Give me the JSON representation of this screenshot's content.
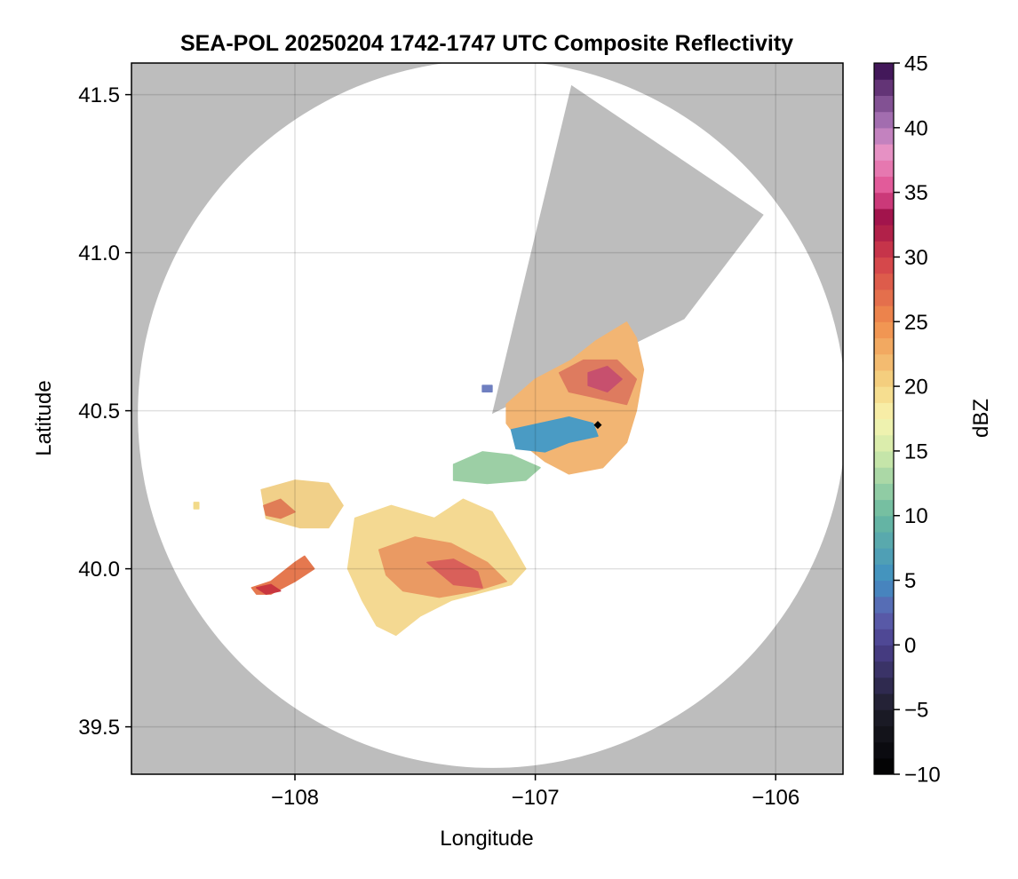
{
  "chart_data": {
    "type": "heatmap",
    "title": "SEA-POL 20250204 1742-1747 UTC Composite Reflectivity",
    "xlabel": "Longitude",
    "ylabel": "Latitude",
    "xlim": [
      -108.68,
      -105.72
    ],
    "ylim": [
      39.35,
      41.6
    ],
    "xticks": [
      -108,
      -107,
      -106
    ],
    "xtick_labels": [
      "−108",
      "−107",
      "−106"
    ],
    "yticks": [
      39.5,
      40.0,
      40.5,
      41.0,
      41.5
    ],
    "ytick_labels": [
      "39.5",
      "40.0",
      "40.5",
      "41.0",
      "41.5"
    ],
    "grid": true,
    "background_color": "#bdbdbd",
    "radar_site": {
      "lon": -107.18,
      "lat": 40.49
    },
    "coverage": {
      "shape": "disk",
      "center_lon": -107.18,
      "center_lat": 40.49,
      "radius_deg_lat": 1.12,
      "blocked_sector": {
        "vertices": [
          [
            -107.18,
            40.49
          ],
          [
            -106.85,
            41.53
          ],
          [
            -106.05,
            41.12
          ],
          [
            -106.38,
            40.79
          ]
        ]
      }
    },
    "marker": {
      "lon": -106.74,
      "lat": 40.455,
      "shape": "diamond",
      "color": "#000000"
    },
    "colorbar": {
      "label": "dBZ",
      "vmin": -10,
      "vmax": 45,
      "ticks": [
        -10,
        -5,
        0,
        5,
        10,
        15,
        20,
        25,
        30,
        35,
        40,
        45
      ],
      "tick_labels": [
        "−10",
        "−5",
        "0",
        "5",
        "10",
        "15",
        "20",
        "25",
        "30",
        "35",
        "40",
        "45"
      ],
      "colors": [
        {
          "v": -10,
          "c": "#000000"
        },
        {
          "v": -5,
          "c": "#1e1e2a"
        },
        {
          "v": 0,
          "c": "#4a3f8c"
        },
        {
          "v": 2.5,
          "c": "#5d62b0"
        },
        {
          "v": 5,
          "c": "#3f8fc2"
        },
        {
          "v": 10,
          "c": "#69b9a0"
        },
        {
          "v": 15,
          "c": "#d2ebaa"
        },
        {
          "v": 17.5,
          "c": "#f7f4b1"
        },
        {
          "v": 20,
          "c": "#f5d785"
        },
        {
          "v": 25,
          "c": "#f08d4c"
        },
        {
          "v": 30,
          "c": "#d13e4b"
        },
        {
          "v": 33,
          "c": "#9e1048"
        },
        {
          "v": 35,
          "c": "#e04c8f"
        },
        {
          "v": 38,
          "c": "#e992c4"
        },
        {
          "v": 40,
          "c": "#b27bbd"
        },
        {
          "v": 45,
          "c": "#330a4c"
        }
      ]
    },
    "echo_regions": [
      {
        "name": "northeast-cell",
        "color": "#f2b573",
        "outline": [
          [
            -107.12,
            40.52
          ],
          [
            -107.0,
            40.6
          ],
          [
            -106.85,
            40.66
          ],
          [
            -106.75,
            40.72
          ],
          [
            -106.62,
            40.78
          ],
          [
            -106.58,
            40.73
          ],
          [
            -106.55,
            40.63
          ],
          [
            -106.58,
            40.5
          ],
          [
            -106.62,
            40.4
          ],
          [
            -106.72,
            40.32
          ],
          [
            -106.86,
            40.3
          ],
          [
            -106.96,
            40.34
          ],
          [
            -107.06,
            40.4
          ],
          [
            -107.12,
            40.46
          ]
        ]
      },
      {
        "name": "northeast-core",
        "color": "#de7b5f",
        "outline": [
          [
            -106.9,
            40.62
          ],
          [
            -106.8,
            40.66
          ],
          [
            -106.66,
            40.66
          ],
          [
            -106.58,
            40.6
          ],
          [
            -106.62,
            40.52
          ],
          [
            -106.74,
            40.54
          ],
          [
            -106.86,
            40.56
          ]
        ]
      },
      {
        "name": "northeast-core-peak",
        "color": "#c7506e",
        "outline": [
          [
            -106.78,
            40.62
          ],
          [
            -106.7,
            40.64
          ],
          [
            -106.64,
            40.6
          ],
          [
            -106.7,
            40.56
          ],
          [
            -106.78,
            40.58
          ]
        ]
      },
      {
        "name": "northeast-low-band",
        "color": "#4a9bc4",
        "outline": [
          [
            -107.1,
            40.44
          ],
          [
            -106.98,
            40.46
          ],
          [
            -106.86,
            40.48
          ],
          [
            -106.76,
            40.46
          ],
          [
            -106.74,
            40.42
          ],
          [
            -106.86,
            40.4
          ],
          [
            -106.96,
            40.37
          ],
          [
            -107.08,
            40.38
          ]
        ]
      },
      {
        "name": "middle-band",
        "color": "#9ccfa5",
        "outline": [
          [
            -107.34,
            40.33
          ],
          [
            -107.22,
            40.37
          ],
          [
            -107.1,
            40.36
          ],
          [
            -106.98,
            40.32
          ],
          [
            -107.04,
            40.28
          ],
          [
            -107.2,
            40.27
          ],
          [
            -107.34,
            40.28
          ]
        ]
      },
      {
        "name": "southwest-cell",
        "color": "#f4d992",
        "outline": [
          [
            -107.75,
            40.16
          ],
          [
            -107.6,
            40.2
          ],
          [
            -107.42,
            40.16
          ],
          [
            -107.3,
            40.22
          ],
          [
            -107.18,
            40.18
          ],
          [
            -107.1,
            40.08
          ],
          [
            -107.04,
            40.0
          ],
          [
            -107.1,
            39.95
          ],
          [
            -107.2,
            39.93
          ],
          [
            -107.35,
            39.9
          ],
          [
            -107.48,
            39.85
          ],
          [
            -107.58,
            39.79
          ],
          [
            -107.66,
            39.82
          ],
          [
            -107.72,
            39.9
          ],
          [
            -107.78,
            40.0
          ]
        ]
      },
      {
        "name": "southwest-core",
        "color": "#ea9a63",
        "outline": [
          [
            -107.65,
            40.06
          ],
          [
            -107.5,
            40.1
          ],
          [
            -107.35,
            40.08
          ],
          [
            -107.2,
            40.02
          ],
          [
            -107.12,
            39.96
          ],
          [
            -107.25,
            39.93
          ],
          [
            -107.4,
            39.91
          ],
          [
            -107.55,
            39.93
          ],
          [
            -107.62,
            39.98
          ]
        ]
      },
      {
        "name": "southwest-core-peak",
        "color": "#d9605a",
        "outline": [
          [
            -107.45,
            40.02
          ],
          [
            -107.34,
            40.03
          ],
          [
            -107.24,
            39.99
          ],
          [
            -107.22,
            39.94
          ],
          [
            -107.34,
            39.95
          ]
        ]
      },
      {
        "name": "west-cell",
        "color": "#f1d089",
        "outline": [
          [
            -108.14,
            40.25
          ],
          [
            -108.0,
            40.28
          ],
          [
            -107.86,
            40.27
          ],
          [
            -107.8,
            40.2
          ],
          [
            -107.86,
            40.13
          ],
          [
            -107.98,
            40.13
          ],
          [
            -108.12,
            40.16
          ]
        ]
      },
      {
        "name": "west-core",
        "color": "#e07d56",
        "outline": [
          [
            -108.13,
            40.2
          ],
          [
            -108.06,
            40.22
          ],
          [
            -108.0,
            40.18
          ],
          [
            -108.06,
            40.16
          ],
          [
            -108.12,
            40.17
          ]
        ]
      },
      {
        "name": "southwest-small-cell",
        "color": "#e5784f",
        "outline": [
          [
            -108.18,
            39.94
          ],
          [
            -108.1,
            39.96
          ],
          [
            -108.0,
            40.02
          ],
          [
            -107.96,
            40.04
          ],
          [
            -107.92,
            40.0
          ],
          [
            -108.0,
            39.96
          ],
          [
            -108.1,
            39.92
          ],
          [
            -108.16,
            39.92
          ]
        ]
      },
      {
        "name": "southwest-small-core",
        "color": "#c9363f",
        "outline": [
          [
            -108.16,
            39.94
          ],
          [
            -108.1,
            39.95
          ],
          [
            -108.06,
            39.93
          ],
          [
            -108.12,
            39.92
          ]
        ]
      },
      {
        "name": "tiny-echo-west",
        "color": "#f2da8a",
        "outline": [
          [
            -108.42,
            40.21
          ],
          [
            -108.4,
            40.21
          ],
          [
            -108.4,
            40.19
          ],
          [
            -108.42,
            40.19
          ]
        ]
      },
      {
        "name": "tiny-echo-radar",
        "color": "#6f7fc0",
        "outline": [
          [
            -107.22,
            40.58
          ],
          [
            -107.18,
            40.58
          ],
          [
            -107.18,
            40.56
          ],
          [
            -107.22,
            40.56
          ]
        ]
      }
    ]
  }
}
